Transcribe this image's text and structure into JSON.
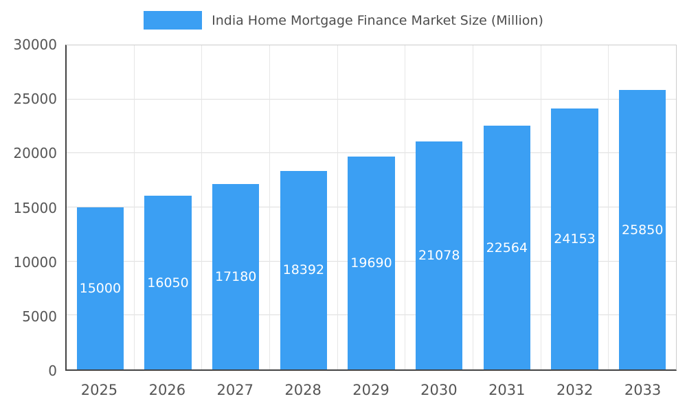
{
  "chart_data": {
    "type": "bar",
    "title": "India Home Mortgage Finance Market Size (Million)",
    "categories": [
      "2025",
      "2026",
      "2027",
      "2028",
      "2029",
      "2030",
      "2031",
      "2032",
      "2033"
    ],
    "values": [
      15000,
      16050,
      17180,
      18392,
      19690,
      21078,
      22564,
      24153,
      25850
    ],
    "xlabel": "",
    "ylabel": "",
    "ylim": [
      0,
      30000
    ],
    "yticks": [
      0,
      5000,
      10000,
      15000,
      20000,
      25000,
      30000
    ],
    "bar_color": "#3B9FF3",
    "value_label_color": "#ffffff",
    "grid": true,
    "legend_position": "top"
  }
}
